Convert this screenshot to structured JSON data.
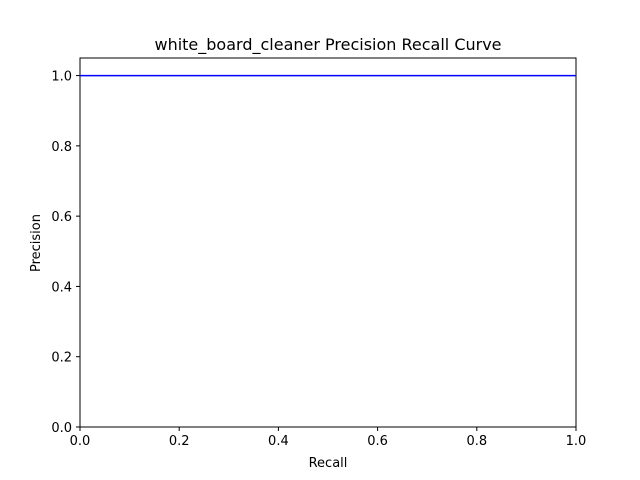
{
  "chart_data": {
    "type": "line",
    "title": "white_board_cleaner Precision Recall Curve",
    "xlabel": "Recall",
    "ylabel": "Precision",
    "xlim": [
      0.0,
      1.0
    ],
    "ylim": [
      0.0,
      1.05
    ],
    "x_ticks": [
      "0.0",
      "0.2",
      "0.4",
      "0.6",
      "0.8",
      "1.0"
    ],
    "y_ticks": [
      "0.0",
      "0.2",
      "0.4",
      "0.6",
      "0.8",
      "1.0"
    ],
    "grid": false,
    "series": [
      {
        "color": "#0000ff",
        "x": [
          0.0,
          1.0
        ],
        "y": [
          1.0,
          1.0
        ]
      }
    ]
  }
}
